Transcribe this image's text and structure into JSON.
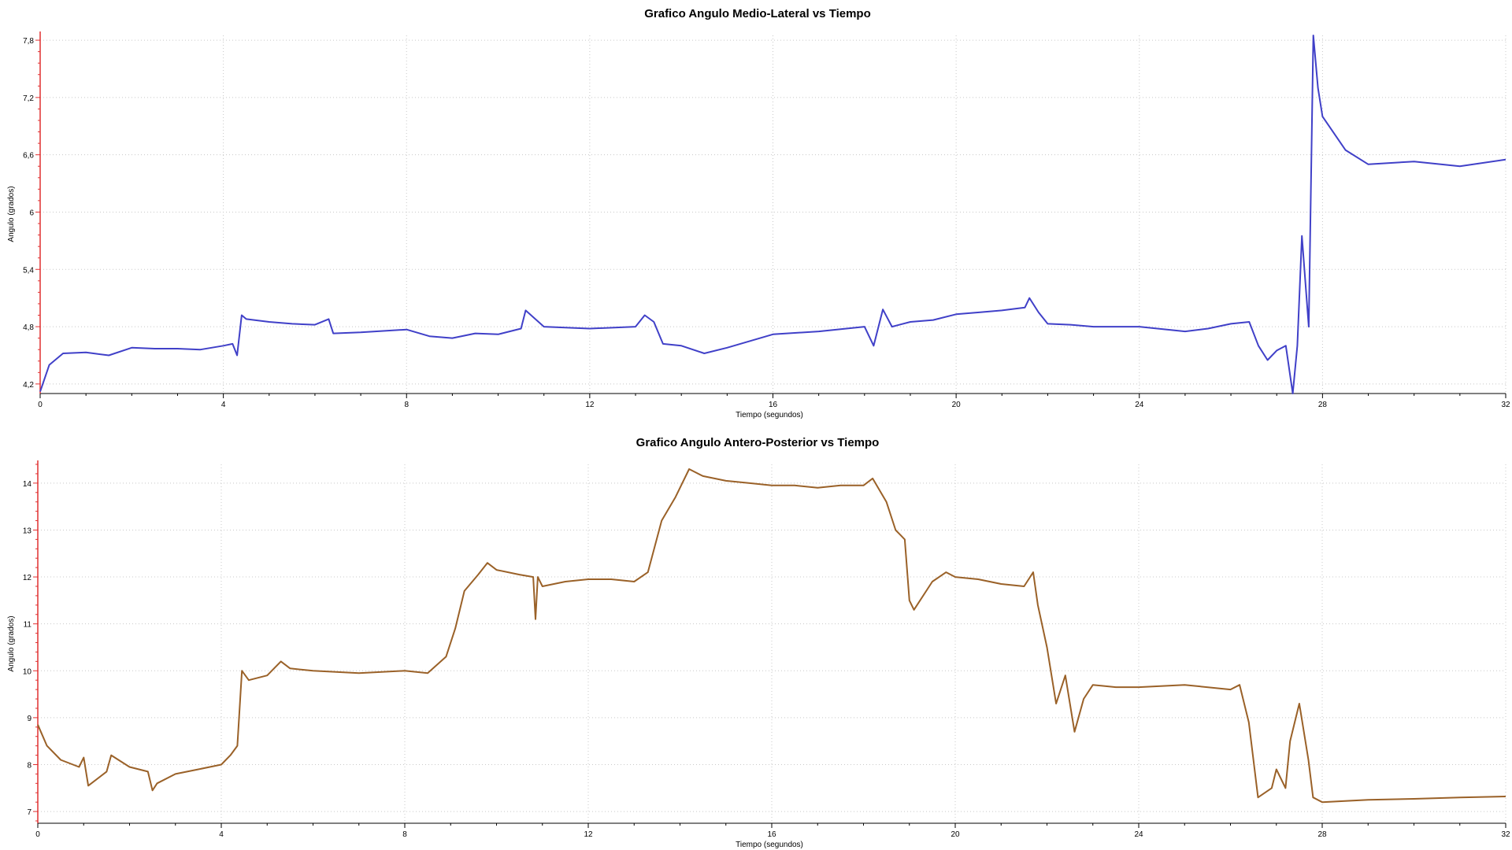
{
  "chart_data": [
    {
      "type": "line",
      "title": "Grafico Angulo Medio-Lateral vs Tiempo",
      "xlabel": "Tiempo (segundos)",
      "ylabel": "Angulo (grados)",
      "xlim": [
        0,
        32
      ],
      "ylim": [
        4.1,
        7.85
      ],
      "xticks": [
        0,
        4,
        8,
        12,
        16,
        20,
        24,
        28,
        32
      ],
      "xtick_labels": [
        "0",
        "4",
        "8",
        "12",
        "16",
        "20",
        "24",
        "28",
        "32"
      ],
      "yticks": [
        4.2,
        4.8,
        5.4,
        6,
        6.6,
        7.2,
        7.8
      ],
      "ytick_labels": [
        "4,2",
        "4,8",
        "5,4",
        "6",
        "6,6",
        "7,2",
        "7,8"
      ],
      "grid": true,
      "color": "#4040c8",
      "series": [
        {
          "x": [
            0,
            0.2,
            0.5,
            1.0,
            1.5,
            2.0,
            2.5,
            3.0,
            3.5,
            4.0,
            4.2,
            4.3,
            4.4,
            4.5,
            5.0,
            5.5,
            6.0,
            6.3,
            6.4,
            7.0,
            8.0,
            8.5,
            9.0,
            9.5,
            10.0,
            10.5,
            10.6,
            11.0,
            12.0,
            13.0,
            13.2,
            13.4,
            13.6,
            14.0,
            14.5,
            15.0,
            15.5,
            16.0,
            17.0,
            18.0,
            18.2,
            18.4,
            18.6,
            19.0,
            19.5,
            20.0,
            20.5,
            21.0,
            21.5,
            21.6,
            21.8,
            22.0,
            22.5,
            23.0,
            24.0,
            25.0,
            25.5,
            26.0,
            26.4,
            26.6,
            26.8,
            27.0,
            27.2,
            27.35,
            27.45,
            27.55,
            27.7,
            27.8,
            27.9,
            28.0,
            28.5,
            29.0,
            30.0,
            31.0,
            32.0
          ],
          "values": [
            4.12,
            4.4,
            4.52,
            4.53,
            4.5,
            4.58,
            4.57,
            4.57,
            4.56,
            4.6,
            4.62,
            4.5,
            4.92,
            4.88,
            4.85,
            4.83,
            4.82,
            4.88,
            4.73,
            4.74,
            4.77,
            4.7,
            4.68,
            4.73,
            4.72,
            4.78,
            4.97,
            4.8,
            4.78,
            4.8,
            4.92,
            4.85,
            4.62,
            4.6,
            4.52,
            4.58,
            4.65,
            4.72,
            4.75,
            4.8,
            4.6,
            4.98,
            4.8,
            4.85,
            4.87,
            4.93,
            4.95,
            4.97,
            5.0,
            5.1,
            4.95,
            4.83,
            4.82,
            4.8,
            4.8,
            4.75,
            4.78,
            4.83,
            4.85,
            4.6,
            4.45,
            4.55,
            4.6,
            4.1,
            4.6,
            5.75,
            4.8,
            7.85,
            7.3,
            7.0,
            6.65,
            6.5,
            6.53,
            6.48,
            6.55
          ]
        }
      ]
    },
    {
      "type": "line",
      "title": "Grafico Angulo Antero-Posterior vs Tiempo",
      "xlabel": "Tiempo (segundos)",
      "ylabel": "Angulo (grados)",
      "xlim": [
        0,
        32
      ],
      "ylim": [
        6.75,
        14.4
      ],
      "xticks": [
        0,
        4,
        8,
        12,
        16,
        20,
        24,
        28,
        32
      ],
      "xtick_labels": [
        "0",
        "4",
        "8",
        "12",
        "16",
        "20",
        "24",
        "28",
        "32"
      ],
      "yticks": [
        7,
        8,
        9,
        10,
        11,
        12,
        13,
        14
      ],
      "ytick_labels": [
        "7",
        "8",
        "9",
        "10",
        "11",
        "12",
        "13",
        "14"
      ],
      "grid": true,
      "color": "#9a6128",
      "series": [
        {
          "x": [
            0,
            0.2,
            0.5,
            0.9,
            1.0,
            1.1,
            1.5,
            1.6,
            2.0,
            2.4,
            2.5,
            2.6,
            3.0,
            3.5,
            4.0,
            4.2,
            4.35,
            4.45,
            4.6,
            5.0,
            5.3,
            5.5,
            6.0,
            7.0,
            8.0,
            8.5,
            8.9,
            9.1,
            9.3,
            9.6,
            9.8,
            10.0,
            10.5,
            10.8,
            10.85,
            10.9,
            11.0,
            11.5,
            12.0,
            12.5,
            13.0,
            13.3,
            13.6,
            13.9,
            14.2,
            14.5,
            15.0,
            15.5,
            16.0,
            16.5,
            17.0,
            17.5,
            18.0,
            18.2,
            18.5,
            18.7,
            18.9,
            19.0,
            19.1,
            19.5,
            19.8,
            20.0,
            20.5,
            21.0,
            21.5,
            21.7,
            21.8,
            22.0,
            22.2,
            22.4,
            22.6,
            22.8,
            23.0,
            23.5,
            24.0,
            25.0,
            26.0,
            26.2,
            26.4,
            26.6,
            26.9,
            27.0,
            27.2,
            27.3,
            27.5,
            27.7,
            27.8,
            28.0,
            29.0,
            30.0,
            31.0,
            32.0
          ],
          "values": [
            8.85,
            8.4,
            8.1,
            7.95,
            8.15,
            7.55,
            7.85,
            8.2,
            7.95,
            7.85,
            7.45,
            7.6,
            7.8,
            7.9,
            8.0,
            8.2,
            8.4,
            10.0,
            9.8,
            9.9,
            10.2,
            10.05,
            10.0,
            9.95,
            10.0,
            9.95,
            10.3,
            10.9,
            11.7,
            12.05,
            12.3,
            12.15,
            12.05,
            12.0,
            11.1,
            12.0,
            11.8,
            11.9,
            11.95,
            11.95,
            11.9,
            12.1,
            13.2,
            13.7,
            14.3,
            14.15,
            14.05,
            14.0,
            13.95,
            13.95,
            13.9,
            13.95,
            13.95,
            14.1,
            13.6,
            13.0,
            12.8,
            11.5,
            11.3,
            11.9,
            12.1,
            12.0,
            11.95,
            11.85,
            11.8,
            12.1,
            11.4,
            10.5,
            9.3,
            9.9,
            8.7,
            9.4,
            9.7,
            9.65,
            9.65,
            9.7,
            9.6,
            9.7,
            8.9,
            7.3,
            7.5,
            7.9,
            7.5,
            8.5,
            9.3,
            8.1,
            7.3,
            7.2,
            7.25,
            7.27,
            7.3,
            7.32
          ]
        }
      ]
    }
  ]
}
